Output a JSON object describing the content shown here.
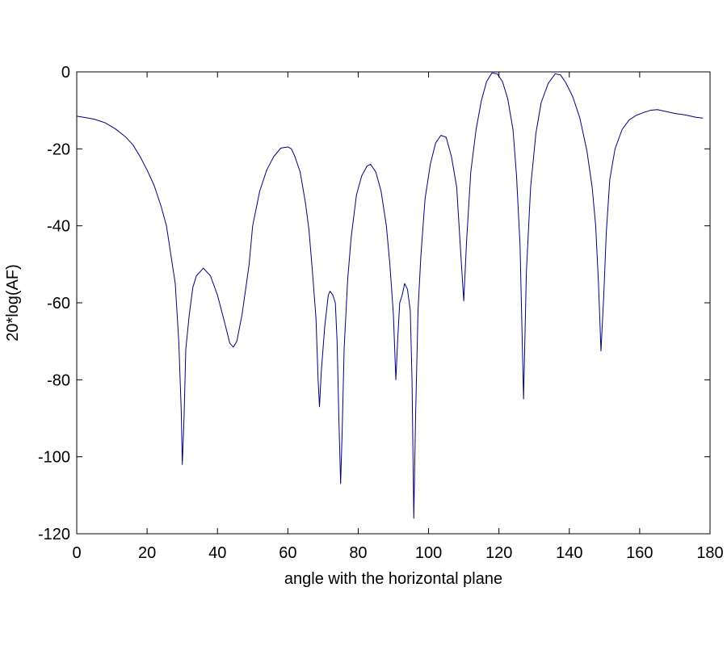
{
  "chart_data": {
    "type": "line",
    "xlabel": "angle with the horizontal plane",
    "ylabel": "20*log(AF)",
    "xlim": [
      0,
      180
    ],
    "ylim": [
      -120,
      0
    ],
    "xticks": [
      0,
      20,
      40,
      60,
      80,
      100,
      120,
      140,
      160,
      180
    ],
    "yticks": [
      0,
      -20,
      -40,
      -60,
      -80,
      -100,
      -120
    ],
    "xtick_labels": [
      "0",
      "20",
      "40",
      "60",
      "80",
      "100",
      "120",
      "140",
      "160",
      "180"
    ],
    "ytick_labels": [
      "0",
      "-20",
      "-40",
      "-60",
      "-80",
      "-100",
      "-120"
    ],
    "grid": false,
    "line_color": "#000080",
    "series": [
      {
        "points": [
          [
            0,
            -11.5
          ],
          [
            2,
            -11.8
          ],
          [
            5,
            -12.3
          ],
          [
            8,
            -13.2
          ],
          [
            11,
            -14.8
          ],
          [
            14,
            -17.0
          ],
          [
            16,
            -19.0
          ],
          [
            18,
            -22.0
          ],
          [
            20,
            -25.5
          ],
          [
            22,
            -29.5
          ],
          [
            24,
            -35.0
          ],
          [
            25.5,
            -40.0
          ],
          [
            27,
            -49.0
          ],
          [
            28,
            -55.0
          ],
          [
            29,
            -70.0
          ],
          [
            29.7,
            -88.0
          ],
          [
            30,
            -102.0
          ],
          [
            30.5,
            -90.0
          ],
          [
            31,
            -72.0
          ],
          [
            32,
            -63.0
          ],
          [
            33,
            -56.0
          ],
          [
            34,
            -53.0
          ],
          [
            36,
            -51.0
          ],
          [
            38,
            -53.0
          ],
          [
            40,
            -58.0
          ],
          [
            42,
            -65.0
          ],
          [
            43.5,
            -70.5
          ],
          [
            44.5,
            -71.5
          ],
          [
            45.5,
            -70.0
          ],
          [
            47,
            -63.0
          ],
          [
            49,
            -50.0
          ],
          [
            50,
            -40.0
          ],
          [
            52,
            -31.0
          ],
          [
            54,
            -25.5
          ],
          [
            56,
            -22.0
          ],
          [
            58,
            -19.8
          ],
          [
            60,
            -19.5
          ],
          [
            61,
            -20.0
          ],
          [
            62,
            -22.0
          ],
          [
            63.5,
            -26.0
          ],
          [
            65,
            -34.0
          ],
          [
            66,
            -41.0
          ],
          [
            67,
            -52.0
          ],
          [
            68,
            -64.0
          ],
          [
            68.6,
            -80.0
          ],
          [
            69,
            -87.0
          ],
          [
            69.5,
            -78.0
          ],
          [
            70.5,
            -66.0
          ],
          [
            71.5,
            -58.0
          ],
          [
            72,
            -57.0
          ],
          [
            72.8,
            -58.0
          ],
          [
            73.5,
            -60.0
          ],
          [
            74,
            -70.0
          ],
          [
            74.5,
            -90.0
          ],
          [
            75,
            -107.0
          ],
          [
            75.4,
            -95.0
          ],
          [
            76,
            -72.0
          ],
          [
            77,
            -54.0
          ],
          [
            78,
            -43.0
          ],
          [
            79.5,
            -32.0
          ],
          [
            81,
            -27.0
          ],
          [
            82.5,
            -24.5
          ],
          [
            83.5,
            -24.0
          ],
          [
            85,
            -26.0
          ],
          [
            86.5,
            -31.0
          ],
          [
            88,
            -40.0
          ],
          [
            89,
            -50.0
          ],
          [
            90,
            -63.0
          ],
          [
            90.7,
            -80.0
          ],
          [
            91.2,
            -70.0
          ],
          [
            91.8,
            -60.0
          ],
          [
            92.5,
            -58.0
          ],
          [
            93.2,
            -55.0
          ],
          [
            94,
            -56.5
          ],
          [
            94.8,
            -62.0
          ],
          [
            95.3,
            -80.0
          ],
          [
            95.8,
            -116.0
          ],
          [
            96.3,
            -90.0
          ],
          [
            97,
            -62.0
          ],
          [
            97.8,
            -48.0
          ],
          [
            99,
            -33.0
          ],
          [
            100.5,
            -24.0
          ],
          [
            102,
            -18.5
          ],
          [
            103.5,
            -16.5
          ],
          [
            105,
            -17.0
          ],
          [
            106.5,
            -22.0
          ],
          [
            108,
            -30.0
          ],
          [
            109,
            -45.0
          ],
          [
            110,
            -59.5
          ],
          [
            110.8,
            -44.0
          ],
          [
            112,
            -26.0
          ],
          [
            113.5,
            -15.0
          ],
          [
            115,
            -7.5
          ],
          [
            116.5,
            -2.5
          ],
          [
            118,
            -0.3
          ],
          [
            119.5,
            -0.5
          ],
          [
            121,
            -2.5
          ],
          [
            122.5,
            -7.0
          ],
          [
            124,
            -15.0
          ],
          [
            125,
            -27.0
          ],
          [
            126,
            -45.0
          ],
          [
            127,
            -85.0
          ],
          [
            127.8,
            -52.0
          ],
          [
            129,
            -30.0
          ],
          [
            130.5,
            -16.0
          ],
          [
            132,
            -8.0
          ],
          [
            134,
            -3.0
          ],
          [
            136,
            -0.5
          ],
          [
            137.5,
            -0.8
          ],
          [
            139,
            -2.8
          ],
          [
            141,
            -6.5
          ],
          [
            143,
            -12.0
          ],
          [
            145,
            -20.5
          ],
          [
            146.5,
            -30.0
          ],
          [
            147.5,
            -40.0
          ],
          [
            148.3,
            -55.0
          ],
          [
            149,
            -72.5
          ],
          [
            149.8,
            -58.0
          ],
          [
            150.5,
            -42.0
          ],
          [
            151.5,
            -28.0
          ],
          [
            153,
            -20.0
          ],
          [
            155,
            -15.0
          ],
          [
            157,
            -12.5
          ],
          [
            159,
            -11.3
          ],
          [
            161,
            -10.6
          ],
          [
            163,
            -10.0
          ],
          [
            165,
            -9.8
          ],
          [
            167,
            -10.2
          ],
          [
            170,
            -10.8
          ],
          [
            173,
            -11.2
          ],
          [
            176,
            -11.8
          ],
          [
            178,
            -12.0
          ]
        ]
      }
    ]
  }
}
